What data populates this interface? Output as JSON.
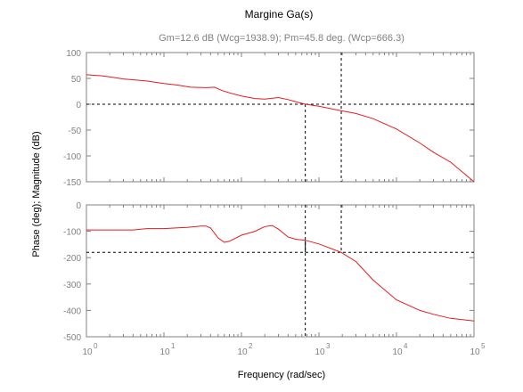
{
  "chart_data": {
    "type": "line",
    "title": "Margine Ga(s)",
    "subtitle": "Gm=12.6 dB (Wcg=1938.9); Pm=45.8 deg. (Wcp=666.3)",
    "xlabel": "Frequency (rad/sec)",
    "ylabel": "Phase (deg); Magnitude (dB)",
    "xscale": "log",
    "xlim": [
      1,
      100000
    ],
    "x_tick_labels": [
      {
        "value": 1,
        "base": "10",
        "exp": "0"
      },
      {
        "value": 10,
        "base": "10",
        "exp": "1"
      },
      {
        "value": 100,
        "base": "10",
        "exp": "2"
      },
      {
        "value": 1000,
        "base": "10",
        "exp": "3"
      },
      {
        "value": 10000,
        "base": "10",
        "exp": "4"
      },
      {
        "value": 100000,
        "base": "10",
        "exp": "5"
      }
    ],
    "line_color": "#e8191f",
    "grid": false,
    "wcp": 666.3,
    "wcg": 1938.9,
    "magnitude": {
      "ylim": [
        -150,
        100
      ],
      "yticks": [
        {
          "value": 100,
          "label": "100"
        },
        {
          "value": 50,
          "label": "50"
        },
        {
          "value": 0,
          "label": "0"
        },
        {
          "value": -50,
          "label": "-50"
        },
        {
          "value": -100,
          "label": "-100"
        },
        {
          "value": -150,
          "label": "-150"
        }
      ],
      "reference_level": 0,
      "gain_at_wcg": -12.6,
      "x": [
        1,
        1.6,
        3,
        6,
        10,
        15,
        22,
        35,
        45,
        55,
        70,
        100,
        150,
        200,
        300,
        400,
        500,
        666.3,
        1000,
        1938.9,
        3000,
        5000,
        10000,
        20000,
        30000,
        50000,
        100000
      ],
      "y": [
        57,
        55,
        49,
        45,
        40,
        37,
        33,
        32,
        33,
        27,
        22,
        16,
        11,
        10,
        13,
        9,
        5,
        0,
        -4,
        -12.6,
        -18,
        -28,
        -48,
        -75,
        -93,
        -112,
        -150
      ]
    },
    "phase": {
      "ylim": [
        -500,
        0
      ],
      "yticks": [
        {
          "value": 0,
          "label": "0"
        },
        {
          "value": -100,
          "label": "-100"
        },
        {
          "value": -200,
          "label": "-200"
        },
        {
          "value": -300,
          "label": "-300"
        },
        {
          "value": -400,
          "label": "-400"
        },
        {
          "value": -500,
          "label": "-500"
        }
      ],
      "reference_level": -180,
      "phase_at_wcp": -134.2,
      "x": [
        1,
        2,
        4,
        6,
        10,
        15,
        20,
        30,
        35,
        40,
        50,
        60,
        70,
        100,
        150,
        200,
        250,
        300,
        400,
        500,
        666.3,
        1000,
        1938.9,
        3000,
        5000,
        10000,
        20000,
        30000,
        50000,
        100000
      ],
      "y": [
        -95,
        -95,
        -95,
        -90,
        -90,
        -87,
        -85,
        -80,
        -80,
        -88,
        -125,
        -142,
        -138,
        -115,
        -100,
        -82,
        -78,
        -92,
        -122,
        -130,
        -134.2,
        -148,
        -180,
        -215,
        -285,
        -360,
        -400,
        -415,
        -430,
        -440
      ]
    }
  }
}
